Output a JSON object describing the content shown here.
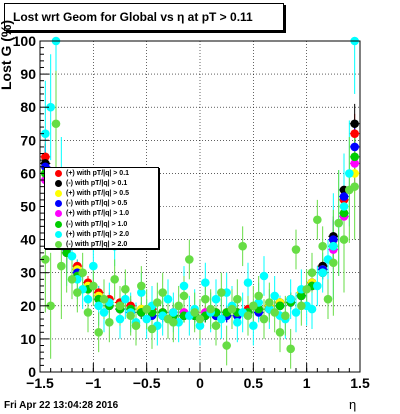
{
  "chart_data": {
    "type": "scatter",
    "title": "Lost wrt Geom for Global vs   η at pT > 0.11",
    "ylabel": "Lost G (%)",
    "xlabel": "η",
    "xlim": [
      -1.5,
      1.5
    ],
    "ylim": [
      0,
      100
    ],
    "xticks": [
      "−1.5",
      "−1",
      "−0.5",
      "0",
      "0.5",
      "1",
      "1.5"
    ],
    "yticks": [
      "0",
      "10",
      "20",
      "30",
      "40",
      "50",
      "60",
      "70",
      "80",
      "90",
      "100"
    ],
    "grid": true,
    "legend_position": "middle-left",
    "series": [
      {
        "name": "(+) with pT/|q| > 0.1",
        "color": "#ff0000",
        "x": [
          -1.45,
          -1.35,
          -1.25,
          -1.15,
          -1.05,
          -0.95,
          -0.85,
          -0.75,
          -0.65,
          -0.55,
          -0.45,
          -0.35,
          -0.25,
          -0.15,
          -0.05,
          0.05,
          0.15,
          0.25,
          0.35,
          0.45,
          0.55,
          0.65,
          0.75,
          0.85,
          0.95,
          1.05,
          1.15,
          1.25,
          1.35,
          1.45
        ],
        "y": [
          65,
          52,
          40,
          32,
          27,
          24,
          22,
          21,
          20,
          19,
          19,
          18,
          18,
          18,
          18,
          18,
          18,
          18,
          18,
          19,
          19,
          20,
          21,
          22,
          24,
          27,
          32,
          40,
          52,
          72
        ]
      },
      {
        "name": "(-) with pT/|q| > 0.1",
        "color": "#000000",
        "x": [
          -1.45,
          -1.35,
          -1.25,
          -1.15,
          -1.05,
          -0.95,
          -0.85,
          -0.75,
          -0.65,
          -0.55,
          -0.45,
          -0.35,
          -0.25,
          -0.15,
          -0.05,
          0.05,
          0.15,
          0.25,
          0.35,
          0.45,
          0.55,
          0.65,
          0.75,
          0.85,
          0.95,
          1.05,
          1.15,
          1.25,
          1.35,
          1.45
        ],
        "y": [
          63,
          51,
          39,
          31,
          26,
          23,
          21,
          20,
          19,
          18,
          18,
          18,
          17,
          17,
          17,
          17,
          17,
          17,
          18,
          18,
          19,
          20,
          21,
          22,
          23,
          27,
          32,
          41,
          55,
          75
        ]
      },
      {
        "name": "(+) with pT/|q| > 0.5",
        "color": "#ffff00",
        "x": [
          -1.45,
          -1.35,
          -1.25,
          -1.15,
          -1.05,
          -0.95,
          -0.85,
          -0.75,
          -0.65,
          -0.55,
          -0.45,
          -0.35,
          -0.25,
          -0.15,
          -0.05,
          0.05,
          0.15,
          0.25,
          0.35,
          0.45,
          0.55,
          0.65,
          0.75,
          0.85,
          0.95,
          1.05,
          1.15,
          1.25,
          1.35,
          1.45
        ],
        "y": [
          60,
          50,
          38,
          31,
          26,
          23,
          21,
          20,
          19,
          19,
          18,
          18,
          18,
          18,
          18,
          18,
          18,
          18,
          18,
          18,
          19,
          20,
          21,
          22,
          24,
          27,
          31,
          38,
          50,
          60
        ]
      },
      {
        "name": "(-) with pT/|q| > 0.5",
        "color": "#0000ff",
        "x": [
          -1.45,
          -1.35,
          -1.25,
          -1.15,
          -1.05,
          -0.95,
          -0.85,
          -0.75,
          -0.65,
          -0.55,
          -0.45,
          -0.35,
          -0.25,
          -0.15,
          -0.05,
          0.05,
          0.15,
          0.25,
          0.35,
          0.45,
          0.55,
          0.65,
          0.75,
          0.85,
          0.95,
          1.05,
          1.15,
          1.25,
          1.35,
          1.45
        ],
        "y": [
          62,
          49,
          37,
          30,
          25,
          22,
          20,
          19,
          18,
          18,
          17,
          17,
          17,
          17,
          17,
          17,
          17,
          17,
          17,
          18,
          18,
          19,
          20,
          21,
          23,
          26,
          31,
          40,
          53,
          68
        ]
      },
      {
        "name": "(+) with pT/|q| > 1.0",
        "color": "#ff00ff",
        "x": [
          -1.45,
          -1.35,
          -1.25,
          -1.15,
          -1.05,
          -0.95,
          -0.85,
          -0.75,
          -0.65,
          -0.55,
          -0.45,
          -0.35,
          -0.25,
          -0.15,
          -0.05,
          0.05,
          0.15,
          0.25,
          0.35,
          0.45,
          0.55,
          0.65,
          0.75,
          0.85,
          0.95,
          1.05,
          1.15,
          1.25,
          1.35,
          1.45
        ],
        "y": [
          58,
          46,
          36,
          29,
          25,
          22,
          20,
          19,
          19,
          18,
          18,
          18,
          18,
          18,
          18,
          18,
          18,
          18,
          18,
          18,
          19,
          19,
          20,
          21,
          23,
          26,
          30,
          37,
          47,
          63
        ]
      },
      {
        "name": "(-) with pT/|q| > 1.0",
        "color": "#00cc00",
        "x": [
          -1.45,
          -1.35,
          -1.25,
          -1.15,
          -1.05,
          -0.95,
          -0.85,
          -0.75,
          -0.65,
          -0.55,
          -0.45,
          -0.35,
          -0.25,
          -0.15,
          -0.05,
          0.05,
          0.15,
          0.25,
          0.35,
          0.45,
          0.55,
          0.65,
          0.75,
          0.85,
          0.95,
          1.05,
          1.15,
          1.25,
          1.35,
          1.45
        ],
        "y": [
          60,
          47,
          36,
          29,
          25,
          22,
          20,
          19,
          19,
          18,
          18,
          18,
          17,
          17,
          17,
          17,
          18,
          18,
          18,
          18,
          19,
          19,
          20,
          21,
          23,
          26,
          30,
          38,
          48,
          65
        ]
      },
      {
        "name": "(+) with pT/|q| > 2.0",
        "color": "#00ffff",
        "x": [
          -1.45,
          -1.4,
          -1.35,
          -1.3,
          -1.25,
          -1.2,
          -1.15,
          -1.1,
          -1.05,
          -1.0,
          -0.95,
          -0.9,
          -0.85,
          -0.8,
          -0.75,
          -0.7,
          -0.65,
          -0.6,
          -0.55,
          -0.5,
          -0.45,
          -0.4,
          -0.35,
          -0.3,
          -0.25,
          -0.2,
          -0.15,
          -0.1,
          -0.05,
          0.0,
          0.05,
          0.1,
          0.15,
          0.2,
          0.25,
          0.3,
          0.35,
          0.4,
          0.45,
          0.5,
          0.55,
          0.6,
          0.65,
          0.7,
          0.75,
          0.8,
          0.85,
          0.9,
          0.95,
          1.0,
          1.05,
          1.1,
          1.15,
          1.2,
          1.25,
          1.3,
          1.35,
          1.4,
          1.45
        ],
        "y": [
          72,
          80,
          100,
          55,
          42,
          35,
          28,
          25,
          22,
          32,
          20,
          18,
          21,
          38,
          16,
          22,
          18,
          15,
          24,
          16,
          20,
          14,
          17,
          22,
          18,
          15,
          26,
          17,
          19,
          14,
          27,
          18,
          22,
          16,
          24,
          20,
          15,
          18,
          27,
          14,
          21,
          29,
          19,
          23,
          17,
          16,
          22,
          18,
          25,
          20,
          19,
          26,
          30,
          34,
          38,
          45,
          50,
          60,
          100
        ]
      },
      {
        "name": "(-) with pT/|q| > 2.0",
        "color": "#66dd44",
        "x": [
          -1.45,
          -1.4,
          -1.35,
          -1.3,
          -1.25,
          -1.2,
          -1.15,
          -1.1,
          -1.05,
          -1.0,
          -0.95,
          -0.9,
          -0.85,
          -0.8,
          -0.75,
          -0.7,
          -0.65,
          -0.6,
          -0.55,
          -0.5,
          -0.45,
          -0.4,
          -0.35,
          -0.3,
          -0.25,
          -0.2,
          -0.15,
          -0.1,
          -0.05,
          0.0,
          0.05,
          0.1,
          0.15,
          0.2,
          0.25,
          0.3,
          0.35,
          0.4,
          0.45,
          0.5,
          0.55,
          0.6,
          0.65,
          0.7,
          0.75,
          0.8,
          0.85,
          0.9,
          0.95,
          1.0,
          1.05,
          1.1,
          1.15,
          1.2,
          1.25,
          1.3,
          1.35,
          1.4,
          1.45
        ],
        "y": [
          34,
          20,
          75,
          32,
          40,
          28,
          24,
          30,
          18,
          26,
          12,
          22,
          15,
          28,
          20,
          25,
          17,
          14,
          26,
          19,
          13,
          21,
          24,
          16,
          15,
          20,
          23,
          34,
          18,
          16,
          22,
          19,
          14,
          24,
          8,
          19,
          22,
          38,
          17,
          20,
          23,
          16,
          21,
          18,
          12,
          17,
          7,
          37,
          20,
          25,
          30,
          46,
          38,
          22,
          33,
          45,
          40,
          55,
          56
        ]
      }
    ],
    "annotations": {
      "datestamp": "Fri Apr 22 13:04:28 2016"
    }
  }
}
